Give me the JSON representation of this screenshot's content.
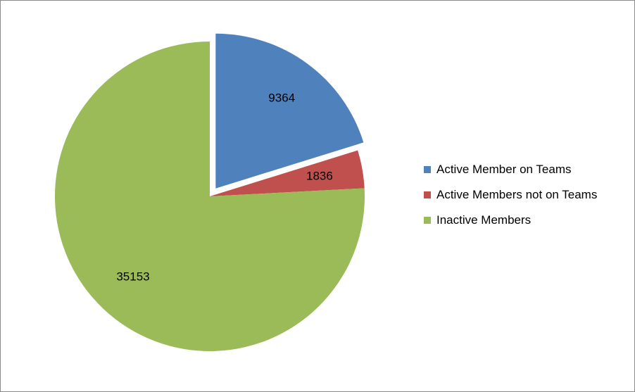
{
  "chart_data": {
    "type": "pie",
    "title": "",
    "start_angle_deg": 0,
    "direction": "clockwise",
    "legend_position": "right",
    "series": [
      {
        "name": "Active Member on Teams",
        "value": 9364,
        "color": "#4f81bd",
        "exploded": true
      },
      {
        "name": "Active Members not on Teams",
        "value": 1836,
        "color": "#c0504d",
        "exploded": false
      },
      {
        "name": "Inactive Members",
        "value": 35153,
        "color": "#9bbb59",
        "exploded": false
      }
    ]
  }
}
